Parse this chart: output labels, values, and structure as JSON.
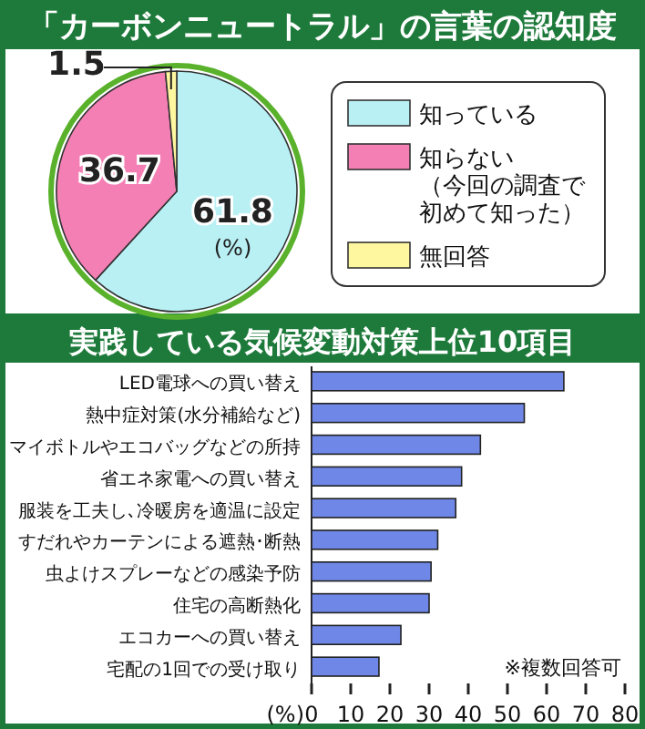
{
  "chart_data": [
    {
      "type": "pie",
      "title": "「カーボンニュートラル」の言葉の認知度",
      "categories": [
        "知っている",
        "知らない（今回の調査で初めて知った）",
        "無回答"
      ],
      "values": [
        61.8,
        36.7,
        1.5
      ],
      "colors": [
        "#b8f0f4",
        "#f47fb4",
        "#fff7a0"
      ],
      "data_labels": true,
      "legend": "right",
      "annotations": [
        "(%)"
      ]
    },
    {
      "type": "bar",
      "orientation": "horizontal",
      "title": "実践している気候変動対策上位10項目",
      "categories": [
        "LED電球への買い替え",
        "熱中症対策(水分補給など)",
        "マイボトルやエコバッグなどの所持",
        "省エネ家電への買い替え",
        "服装を工夫し､冷暖房を適温に設定",
        "すだれやカーテンによる遮熱･断熱",
        "虫よけスプレーなどの感染予防",
        "住宅の高断熱化",
        "エコカーへの買い替え",
        "宅配の1回での受け取り"
      ],
      "values": [
        64.4,
        54.3,
        43.1,
        38.3,
        36.8,
        32.2,
        30.5,
        30.0,
        22.8,
        17.2
      ],
      "color": "#6f87e6",
      "xlim": [
        0,
        80
      ],
      "xticks": [
        0,
        10,
        20,
        30,
        40,
        50,
        60,
        70,
        80
      ],
      "xlabel": "(%)",
      "annotations": [
        "※複数回答可"
      ]
    }
  ]
}
